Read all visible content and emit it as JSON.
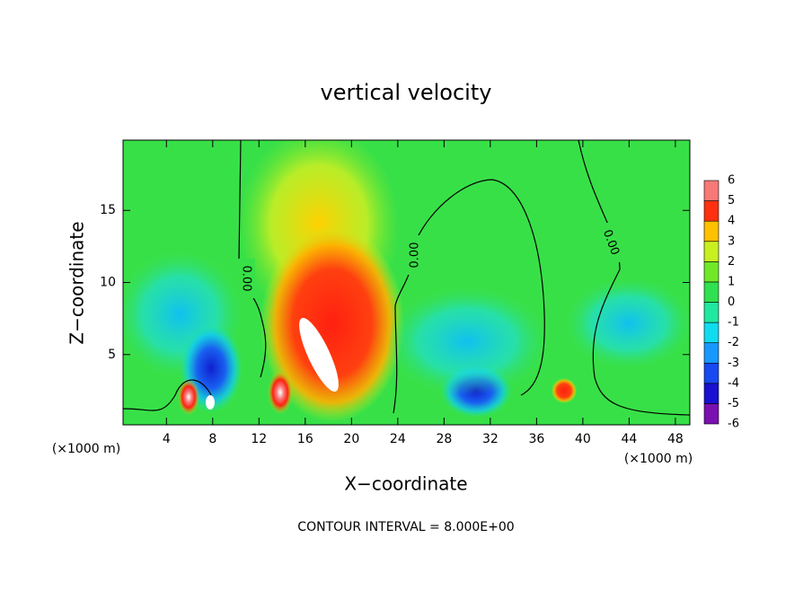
{
  "chart_data": {
    "type": "contour",
    "title": "vertical velocity",
    "x_label": "X−coordinate",
    "y_label": "Z−coordinate",
    "x_unit_left": "(×1000 m)",
    "x_unit_right": "(×1000 m)",
    "footer": "CONTOUR INTERVAL = 8.000E+00",
    "xlim": [
      0.25,
      49.25
    ],
    "ylim": [
      0.125,
      19.875
    ],
    "xticks": [
      4,
      8,
      12,
      16,
      20,
      24,
      28,
      32,
      36,
      40,
      44,
      48
    ],
    "yticks": [
      5,
      10,
      15
    ],
    "contour_labels": [
      "0.00",
      "0.00",
      "0.00"
    ],
    "colorbar": {
      "levels": [
        -6,
        -5,
        -4,
        -3,
        -2,
        -1,
        0,
        1,
        2,
        3,
        4,
        5,
        6
      ],
      "colors": [
        "#7a10b0",
        "#1a10d0",
        "#1848f0",
        "#1898ff",
        "#10dcf0",
        "#20e8a0",
        "#30e050",
        "#70e828",
        "#c8f020",
        "#ffc000",
        "#ff3010",
        "#f87878"
      ]
    }
  }
}
